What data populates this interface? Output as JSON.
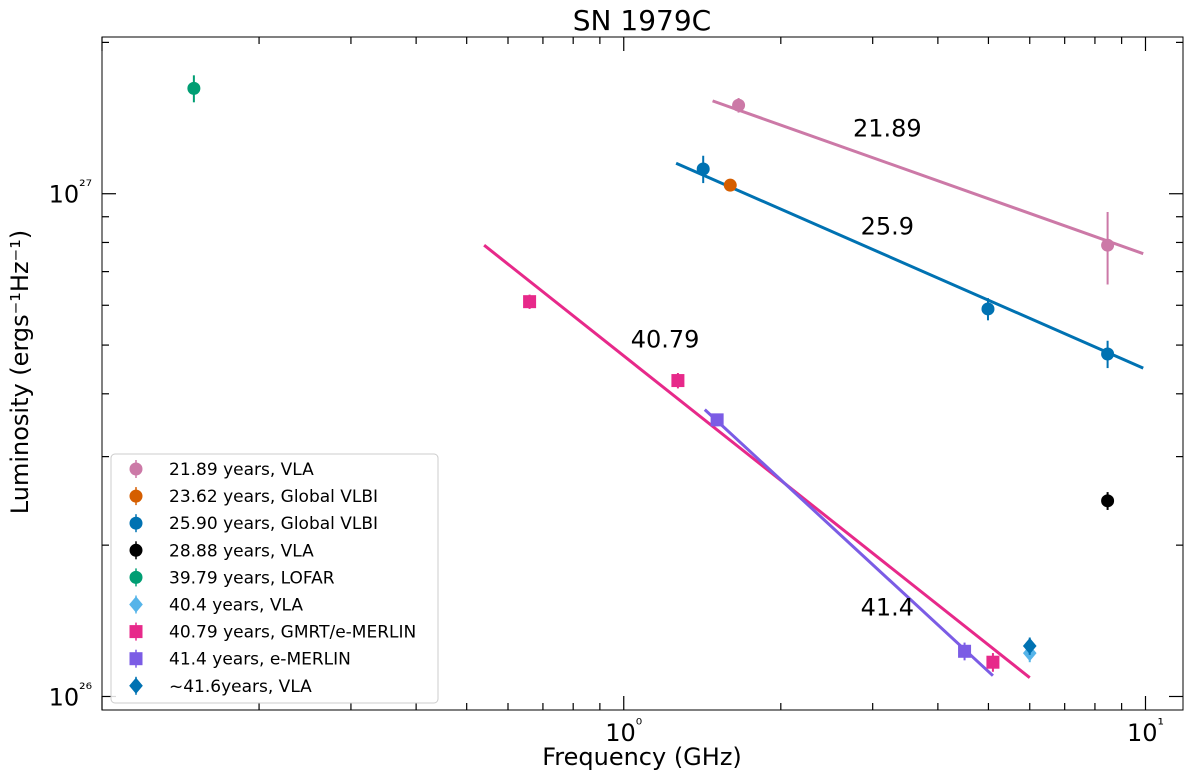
{
  "chart_data": {
    "type": "scatter",
    "title": "SN 1979C",
    "xlabel": "Frequency (GHz)",
    "ylabel": "Luminosity (ergs⁻¹Hz⁻¹)",
    "x_scale": "log",
    "y_scale": "log",
    "xlim": [
      0.1,
      11.8
    ],
    "ylim": [
      9.4e+25,
      2.05e+27
    ],
    "x_ticks": [
      {
        "value": 1,
        "label": "10⁰"
      },
      {
        "value": 10,
        "label": "10¹"
      }
    ],
    "y_ticks": [
      {
        "value": 1e+26,
        "label": "10²⁶"
      },
      {
        "value": 1e+27,
        "label": "10²⁷"
      }
    ],
    "grid": false,
    "legend_position": "lower-left",
    "series": [
      {
        "name": "21.89 years, VLA",
        "color": "#CC79A7",
        "marker": "circle",
        "points": [
          {
            "x": 1.66,
            "y": 1.5e+27,
            "err": 5e+25
          },
          {
            "x": 8.46,
            "y": 7.9e+26,
            "err": 1.3e+26
          }
        ]
      },
      {
        "name": "23.62 years, Global VLBI",
        "color": "#D55E00",
        "marker": "circle",
        "points": [
          {
            "x": 1.6,
            "y": 1.04e+27,
            "err": 2e+25
          }
        ]
      },
      {
        "name": "25.90 years, Global VLBI",
        "color": "#0072B2",
        "marker": "circle",
        "points": [
          {
            "x": 1.42,
            "y": 1.12e+27,
            "err": 7e+25
          },
          {
            "x": 4.99,
            "y": 5.9e+26,
            "err": 3e+25
          },
          {
            "x": 8.46,
            "y": 4.8e+26,
            "err": 3e+25
          }
        ]
      },
      {
        "name": "28.88 years, VLA",
        "color": "#000000",
        "marker": "circle",
        "points": [
          {
            "x": 8.46,
            "y": 2.45e+26,
            "err": 1e+25
          }
        ]
      },
      {
        "name": "39.79 years, LOFAR",
        "color": "#009E73",
        "marker": "circle",
        "points": [
          {
            "x": 0.15,
            "y": 1.62e+27,
            "err": 1e+26
          }
        ]
      },
      {
        "name": "40.4 years,  VLA",
        "color": "#56B4E9",
        "marker": "diamond",
        "points": [
          {
            "x": 6.0,
            "y": 1.22e+26,
            "err": 5e+24
          }
        ]
      },
      {
        "name": "40.79 years, GMRT/e-MERLIN",
        "color": "#E7298A",
        "marker": "square",
        "points": [
          {
            "x": 0.66,
            "y": 6.1e+26,
            "err": 2e+25
          },
          {
            "x": 1.27,
            "y": 4.25e+26,
            "err": 1.5e+25
          },
          {
            "x": 5.1,
            "y": 1.17e+26,
            "err": 5e+24
          }
        ]
      },
      {
        "name": "41.4 years, e-MERLIN",
        "color": "#7B5CE5",
        "marker": "square",
        "points": [
          {
            "x": 1.51,
            "y": 3.55e+26,
            "err": 1e+25
          },
          {
            "x": 4.5,
            "y": 1.23e+26,
            "err": 5e+24
          }
        ]
      },
      {
        "name": "~41.6years, VLA",
        "color": "#0072B2",
        "marker": "diamond",
        "points": [
          {
            "x": 6.0,
            "y": 1.26e+26,
            "err": 5e+24
          }
        ]
      }
    ],
    "fit_lines": [
      {
        "label": "21.89",
        "color": "#CC79A7",
        "x": [
          1.48,
          9.9
        ],
        "y": [
          1.53e+27,
          7.6e+26
        ],
        "label_x": 3.2,
        "label_y": 1.3e+27
      },
      {
        "label": "25.9",
        "color": "#0072B2",
        "x": [
          1.26,
          9.9
        ],
        "y": [
          1.15e+27,
          4.5e+26
        ],
        "label_x": 3.2,
        "label_y": 8.3e+26
      },
      {
        "label": "40.79",
        "color": "#E7298A",
        "x": [
          0.54,
          6.0
        ],
        "y": [
          7.9e+26,
          1.09e+26
        ],
        "label_x": 1.2,
        "label_y": 4.95e+26
      },
      {
        "label": "41.4",
        "color": "#7B5CE5",
        "x": [
          1.43,
          5.1
        ],
        "y": [
          3.72e+26,
          1.1e+26
        ],
        "label_x": 3.2,
        "label_y": 1.45e+26
      }
    ]
  }
}
